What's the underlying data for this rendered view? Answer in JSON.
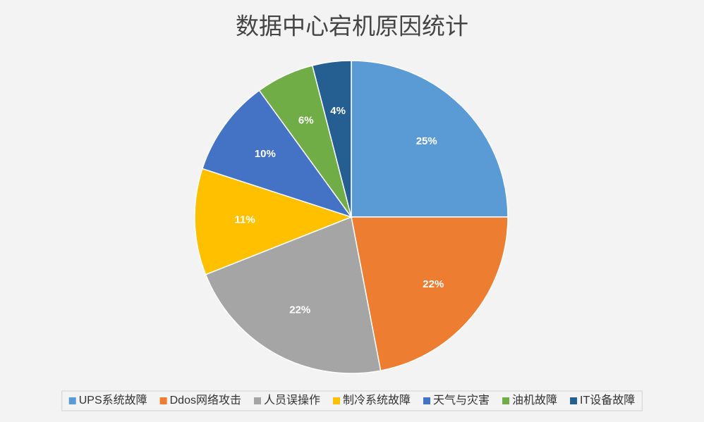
{
  "chart_data": {
    "type": "pie",
    "title": "数据中心宕机原因统计",
    "categories": [
      "UPS系统故障",
      "Ddos网络攻击",
      "人员误操作",
      "制冷系统故障",
      "天气与灾害",
      "油机故障",
      "IT设备故障"
    ],
    "values": [
      25,
      22,
      22,
      11,
      10,
      6,
      4
    ],
    "value_labels": [
      "25%",
      "22%",
      "22%",
      "11%",
      "10%",
      "6%",
      "4%"
    ],
    "colors": [
      "#5b9bd5",
      "#ed7d31",
      "#a5a5a5",
      "#ffc000",
      "#4472c4",
      "#70ad47",
      "#255e91"
    ],
    "legend": "bottom"
  }
}
